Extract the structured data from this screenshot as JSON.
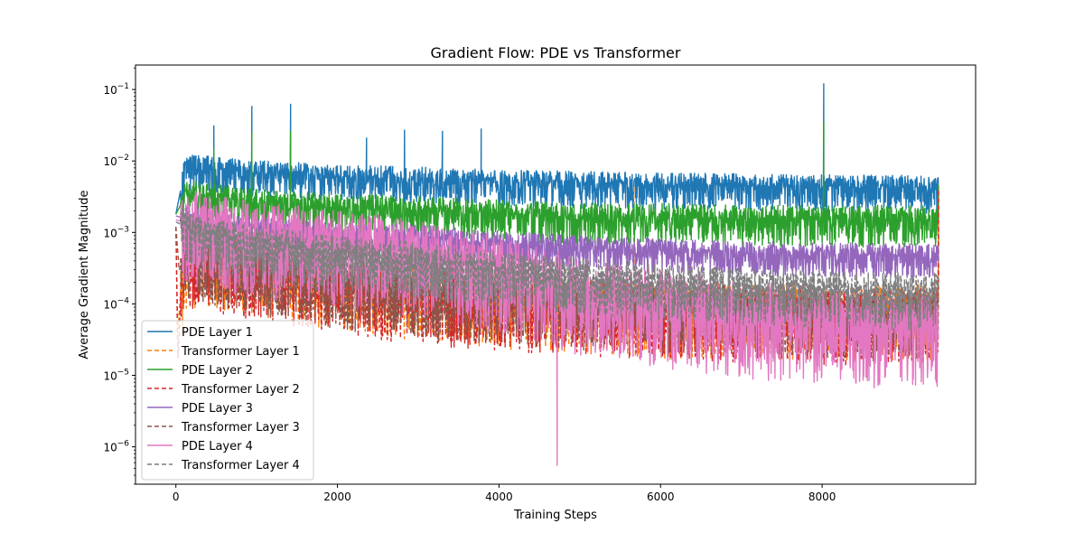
{
  "chart_data": {
    "type": "line",
    "title": "Gradient Flow: PDE vs Transformer",
    "xlabel": "Training Steps",
    "ylabel": "Average Gradient Magnitude",
    "yscale": "log",
    "xlim": [
      -500,
      9900
    ],
    "ylim": [
      3e-07,
      0.22
    ],
    "xticks": [
      0,
      2000,
      4000,
      6000,
      8000
    ],
    "xtick_labels": [
      "0",
      "2000",
      "4000",
      "6000",
      "8000"
    ],
    "yticks": [
      1e-06,
      1e-05,
      0.0001,
      0.001,
      0.01,
      0.1
    ],
    "ytick_labels": [
      {
        "base": "10",
        "exp": "−6"
      },
      {
        "base": "10",
        "exp": "−5"
      },
      {
        "base": "10",
        "exp": "−4"
      },
      {
        "base": "10",
        "exp": "−3"
      },
      {
        "base": "10",
        "exp": "−2"
      },
      {
        "base": "10",
        "exp": "−1"
      }
    ],
    "x_max_step": 9440,
    "legend_position": "lower-left",
    "grid": false,
    "series": [
      {
        "name": "PDE Layer 1",
        "color": "#1f77b4",
        "dash": "solid",
        "points": [
          [
            0,
            0.0018
          ],
          [
            50,
            0.0035
          ],
          [
            100,
            0.007
          ],
          [
            200,
            0.0085
          ],
          [
            500,
            0.0075
          ],
          [
            1000,
            0.0068
          ],
          [
            2000,
            0.006
          ],
          [
            3000,
            0.0055
          ],
          [
            4000,
            0.005
          ],
          [
            5000,
            0.0048
          ],
          [
            6000,
            0.0045
          ],
          [
            7000,
            0.0045
          ],
          [
            8000,
            0.0043
          ],
          [
            9000,
            0.0042
          ],
          [
            9440,
            0.004
          ]
        ],
        "band": [
          1.5,
          2.2
        ],
        "spikes": [
          [
            470,
            0.031
          ],
          [
            940,
            0.058
          ],
          [
            1420,
            0.062
          ],
          [
            2360,
            0.021
          ],
          [
            2830,
            0.027
          ],
          [
            3300,
            0.026
          ],
          [
            3780,
            0.028
          ],
          [
            8020,
            0.12
          ]
        ]
      },
      {
        "name": "Transformer Layer 1",
        "color": "#ff7f0e",
        "dash": "dashed",
        "points": [
          [
            0,
            0.0012
          ],
          [
            25,
            4e-05
          ],
          [
            60,
            0.00015
          ],
          [
            120,
            0.0005
          ],
          [
            500,
            0.0005
          ],
          [
            1000,
            0.0004
          ],
          [
            2000,
            0.00025
          ],
          [
            3000,
            0.00018
          ],
          [
            4000,
            0.00014
          ],
          [
            5000,
            0.00012
          ],
          [
            6000,
            0.0001
          ],
          [
            7000,
            0.0001
          ],
          [
            8000,
            9e-05
          ],
          [
            9000,
            9e-05
          ],
          [
            9440,
            0.0001
          ]
        ],
        "band": [
          2.0,
          6.0
        ],
        "spikes": [
          [
            5670,
            0.0045
          ],
          [
            9440,
            0.0045
          ]
        ]
      },
      {
        "name": "PDE Layer 2",
        "color": "#2ca02c",
        "dash": "solid",
        "points": [
          [
            0,
            0.0018
          ],
          [
            100,
            0.003
          ],
          [
            200,
            0.0034
          ],
          [
            500,
            0.003
          ],
          [
            1000,
            0.0025
          ],
          [
            2000,
            0.0022
          ],
          [
            3000,
            0.002
          ],
          [
            4000,
            0.0018
          ],
          [
            5000,
            0.0016
          ],
          [
            6000,
            0.0016
          ],
          [
            7000,
            0.0015
          ],
          [
            8000,
            0.0015
          ],
          [
            9000,
            0.0015
          ],
          [
            9440,
            0.0015
          ]
        ],
        "band": [
          1.6,
          2.4
        ],
        "spikes": [
          [
            470,
            0.015
          ],
          [
            940,
            0.025
          ],
          [
            1420,
            0.026
          ],
          [
            8020,
            0.035
          ],
          [
            9440,
            0.0045
          ]
        ]
      },
      {
        "name": "Transformer Layer 2",
        "color": "#d62728",
        "dash": "dashed",
        "points": [
          [
            0,
            0.0012
          ],
          [
            25,
            1.5e-05
          ],
          [
            60,
            0.00012
          ],
          [
            120,
            0.0005
          ],
          [
            500,
            0.00045
          ],
          [
            1000,
            0.00035
          ],
          [
            2000,
            0.00022
          ],
          [
            3000,
            0.00016
          ],
          [
            4000,
            0.00013
          ],
          [
            5000,
            0.00011
          ],
          [
            6000,
            0.0001
          ],
          [
            7000,
            9e-05
          ],
          [
            8000,
            8e-05
          ],
          [
            9000,
            8e-05
          ],
          [
            9440,
            9e-05
          ]
        ],
        "band": [
          2.0,
          6.0
        ],
        "spikes": [
          [
            9440,
            0.004
          ]
        ]
      },
      {
        "name": "PDE Layer 3",
        "color": "#9467bd",
        "dash": "solid",
        "points": [
          [
            0,
            0.0017
          ],
          [
            200,
            0.0015
          ],
          [
            500,
            0.0013
          ],
          [
            1000,
            0.0011
          ],
          [
            2000,
            0.0009
          ],
          [
            3000,
            0.00085
          ],
          [
            4000,
            0.0007
          ],
          [
            5000,
            0.0006
          ],
          [
            6000,
            0.00055
          ],
          [
            7000,
            0.0005
          ],
          [
            8000,
            0.00048
          ],
          [
            9000,
            0.00047
          ],
          [
            9440,
            0.00045
          ]
        ],
        "band": [
          1.5,
          2.0
        ],
        "spikes": []
      },
      {
        "name": "Transformer Layer 3",
        "color": "#8c564b",
        "dash": "dashed",
        "points": [
          [
            0,
            0.0012
          ],
          [
            40,
            0.0003
          ],
          [
            120,
            0.0005
          ],
          [
            500,
            0.00045
          ],
          [
            1000,
            0.00035
          ],
          [
            2000,
            0.00022
          ],
          [
            3000,
            0.00016
          ],
          [
            4000,
            0.00013
          ],
          [
            5000,
            0.00011
          ],
          [
            6000,
            0.0001
          ],
          [
            7000,
            9e-05
          ],
          [
            8000,
            8e-05
          ],
          [
            9000,
            8e-05
          ],
          [
            9440,
            9e-05
          ]
        ],
        "band": [
          1.8,
          5.0
        ],
        "spikes": []
      },
      {
        "name": "PDE Layer 4",
        "color": "#e377c2",
        "dash": "solid",
        "points": [
          [
            0,
            0.0015
          ],
          [
            200,
            0.0013
          ],
          [
            500,
            0.0011
          ],
          [
            1000,
            0.0009
          ],
          [
            2000,
            0.0007
          ],
          [
            3000,
            0.0005
          ],
          [
            4000,
            0.0003
          ],
          [
            5000,
            0.00015
          ],
          [
            6000,
            0.0001
          ],
          [
            7000,
            7e-05
          ],
          [
            8000,
            6e-05
          ],
          [
            9000,
            5e-05
          ],
          [
            9440,
            5e-05
          ]
        ],
        "band": [
          3.0,
          8.0
        ],
        "spikes": [
          [
            4720,
            5.5e-07
          ]
        ]
      },
      {
        "name": "Transformer Layer 4",
        "color": "#7f7f7f",
        "dash": "dashed",
        "points": [
          [
            0,
            0.0014
          ],
          [
            200,
            0.0011
          ],
          [
            500,
            0.0009
          ],
          [
            1000,
            0.0007
          ],
          [
            2000,
            0.0005
          ],
          [
            3000,
            0.0004
          ],
          [
            4000,
            0.0003
          ],
          [
            5000,
            0.00025
          ],
          [
            6000,
            0.0002
          ],
          [
            7000,
            0.00018
          ],
          [
            8000,
            0.00016
          ],
          [
            9000,
            0.00015
          ],
          [
            9440,
            0.00015
          ]
        ],
        "band": [
          1.8,
          3.5
        ],
        "spikes": []
      }
    ]
  }
}
